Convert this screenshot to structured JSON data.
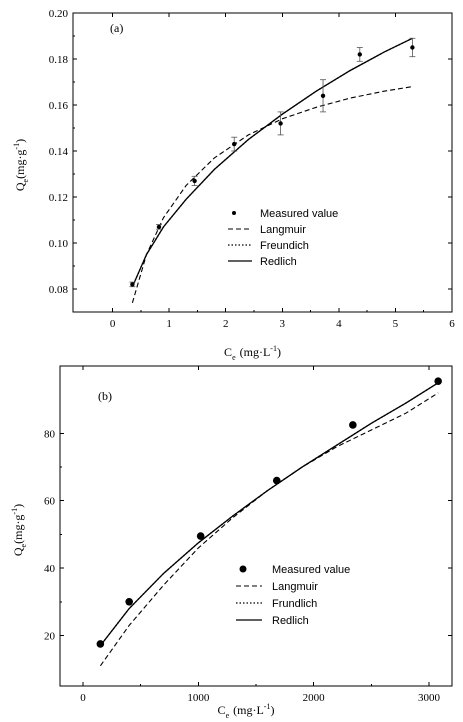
{
  "chart_data": [
    {
      "type": "scatter",
      "panel_label": "(a)",
      "xlabel_main": "C",
      "xlabel_sub": "e",
      "xlabel_unit": "(mg·L",
      "xlabel_sup": "-1",
      "xlabel_close": ")",
      "ylabel_main": "Q",
      "ylabel_sub": "e",
      "ylabel_unit": "(mg·g",
      "ylabel_sup": "-1",
      "ylabel_close": ")",
      "xlim": [
        -0.7,
        6
      ],
      "ylim": [
        0.07,
        0.2
      ],
      "xticks": [
        0,
        1,
        2,
        3,
        4,
        5,
        6
      ],
      "yticks": [
        0.08,
        0.1,
        0.12,
        0.14,
        0.16,
        0.18,
        0.2
      ],
      "ytick_labels": [
        "0.08",
        "0.10",
        "0.12",
        "0.14",
        "0.16",
        "0.18",
        "0.20"
      ],
      "measured": {
        "name": "Measured value",
        "x": [
          0.35,
          0.82,
          1.45,
          2.15,
          2.97,
          3.72,
          4.37,
          5.3
        ],
        "y": [
          0.082,
          0.107,
          0.127,
          0.143,
          0.152,
          0.164,
          0.182,
          0.185
        ],
        "err": [
          0.001,
          0.001,
          0.002,
          0.003,
          0.005,
          0.007,
          0.003,
          0.004
        ]
      },
      "series": [
        {
          "name": "Langmuir",
          "style": "dashed",
          "x": [
            0.35,
            0.6,
            0.9,
            1.3,
            1.8,
            2.4,
            3.0,
            3.6,
            4.2,
            4.8,
            5.3
          ],
          "y": [
            0.074,
            0.095,
            0.111,
            0.125,
            0.137,
            0.147,
            0.154,
            0.159,
            0.163,
            0.166,
            0.168
          ]
        },
        {
          "name": "Freundich",
          "style": "dotted",
          "x": [
            0.35,
            0.6,
            0.9,
            1.3,
            1.8,
            2.4,
            3.0,
            3.6,
            4.2,
            4.8,
            5.3
          ],
          "y": [
            0.081,
            0.095,
            0.107,
            0.119,
            0.132,
            0.145,
            0.156,
            0.166,
            0.175,
            0.183,
            0.189
          ]
        },
        {
          "name": "Redlich",
          "style": "solid",
          "x": [
            0.35,
            0.6,
            0.9,
            1.3,
            1.8,
            2.4,
            3.0,
            3.6,
            4.2,
            4.8,
            5.3
          ],
          "y": [
            0.081,
            0.095,
            0.107,
            0.119,
            0.132,
            0.145,
            0.156,
            0.166,
            0.175,
            0.183,
            0.189
          ]
        }
      ],
      "legend_position": "center-right"
    },
    {
      "type": "scatter",
      "panel_label": "(b)",
      "xlabel_main": "C",
      "xlabel_sub": "e",
      "xlabel_unit": "(mg·L",
      "xlabel_sup": "-1",
      "xlabel_close": ")",
      "ylabel_main": "Q",
      "ylabel_sub": "e",
      "ylabel_unit": "(mg·g",
      "ylabel_sup": "-1",
      "ylabel_close": ")",
      "xlim": [
        -200,
        3200
      ],
      "ylim": [
        5,
        100
      ],
      "xticks": [
        0,
        1000,
        2000,
        3000
      ],
      "yticks": [
        20,
        40,
        60,
        80
      ],
      "ytick_labels": [
        "20",
        "40",
        "60",
        "80"
      ],
      "measured": {
        "name": "Measured value",
        "x": [
          150,
          400,
          1020,
          1680,
          2340,
          3080
        ],
        "y": [
          17.5,
          30,
          49.5,
          66,
          82.5,
          95.5
        ]
      },
      "series": [
        {
          "name": "Langmuir",
          "style": "dashed",
          "x": [
            150,
            400,
            700,
            1000,
            1300,
            1600,
            1900,
            2200,
            2500,
            2800,
            3080
          ],
          "y": [
            11,
            23,
            35,
            46,
            55,
            63,
            70,
            76,
            81,
            86,
            92
          ]
        },
        {
          "name": "Frundlich",
          "style": "dotted",
          "x": [
            150,
            400,
            700,
            1000,
            1300,
            1600,
            1900,
            2200,
            2500,
            2800,
            3080
          ],
          "y": [
            17,
            28,
            38.5,
            47.5,
            55.5,
            63,
            70,
            76.5,
            83,
            89,
            95
          ]
        },
        {
          "name": "Redlich",
          "style": "solid",
          "x": [
            150,
            400,
            700,
            1000,
            1300,
            1600,
            1900,
            2200,
            2500,
            2800,
            3080
          ],
          "y": [
            17,
            28,
            38.5,
            47.5,
            55.5,
            63,
            70,
            76.5,
            83,
            89,
            95
          ]
        }
      ],
      "legend_position": "bottom-center"
    }
  ]
}
